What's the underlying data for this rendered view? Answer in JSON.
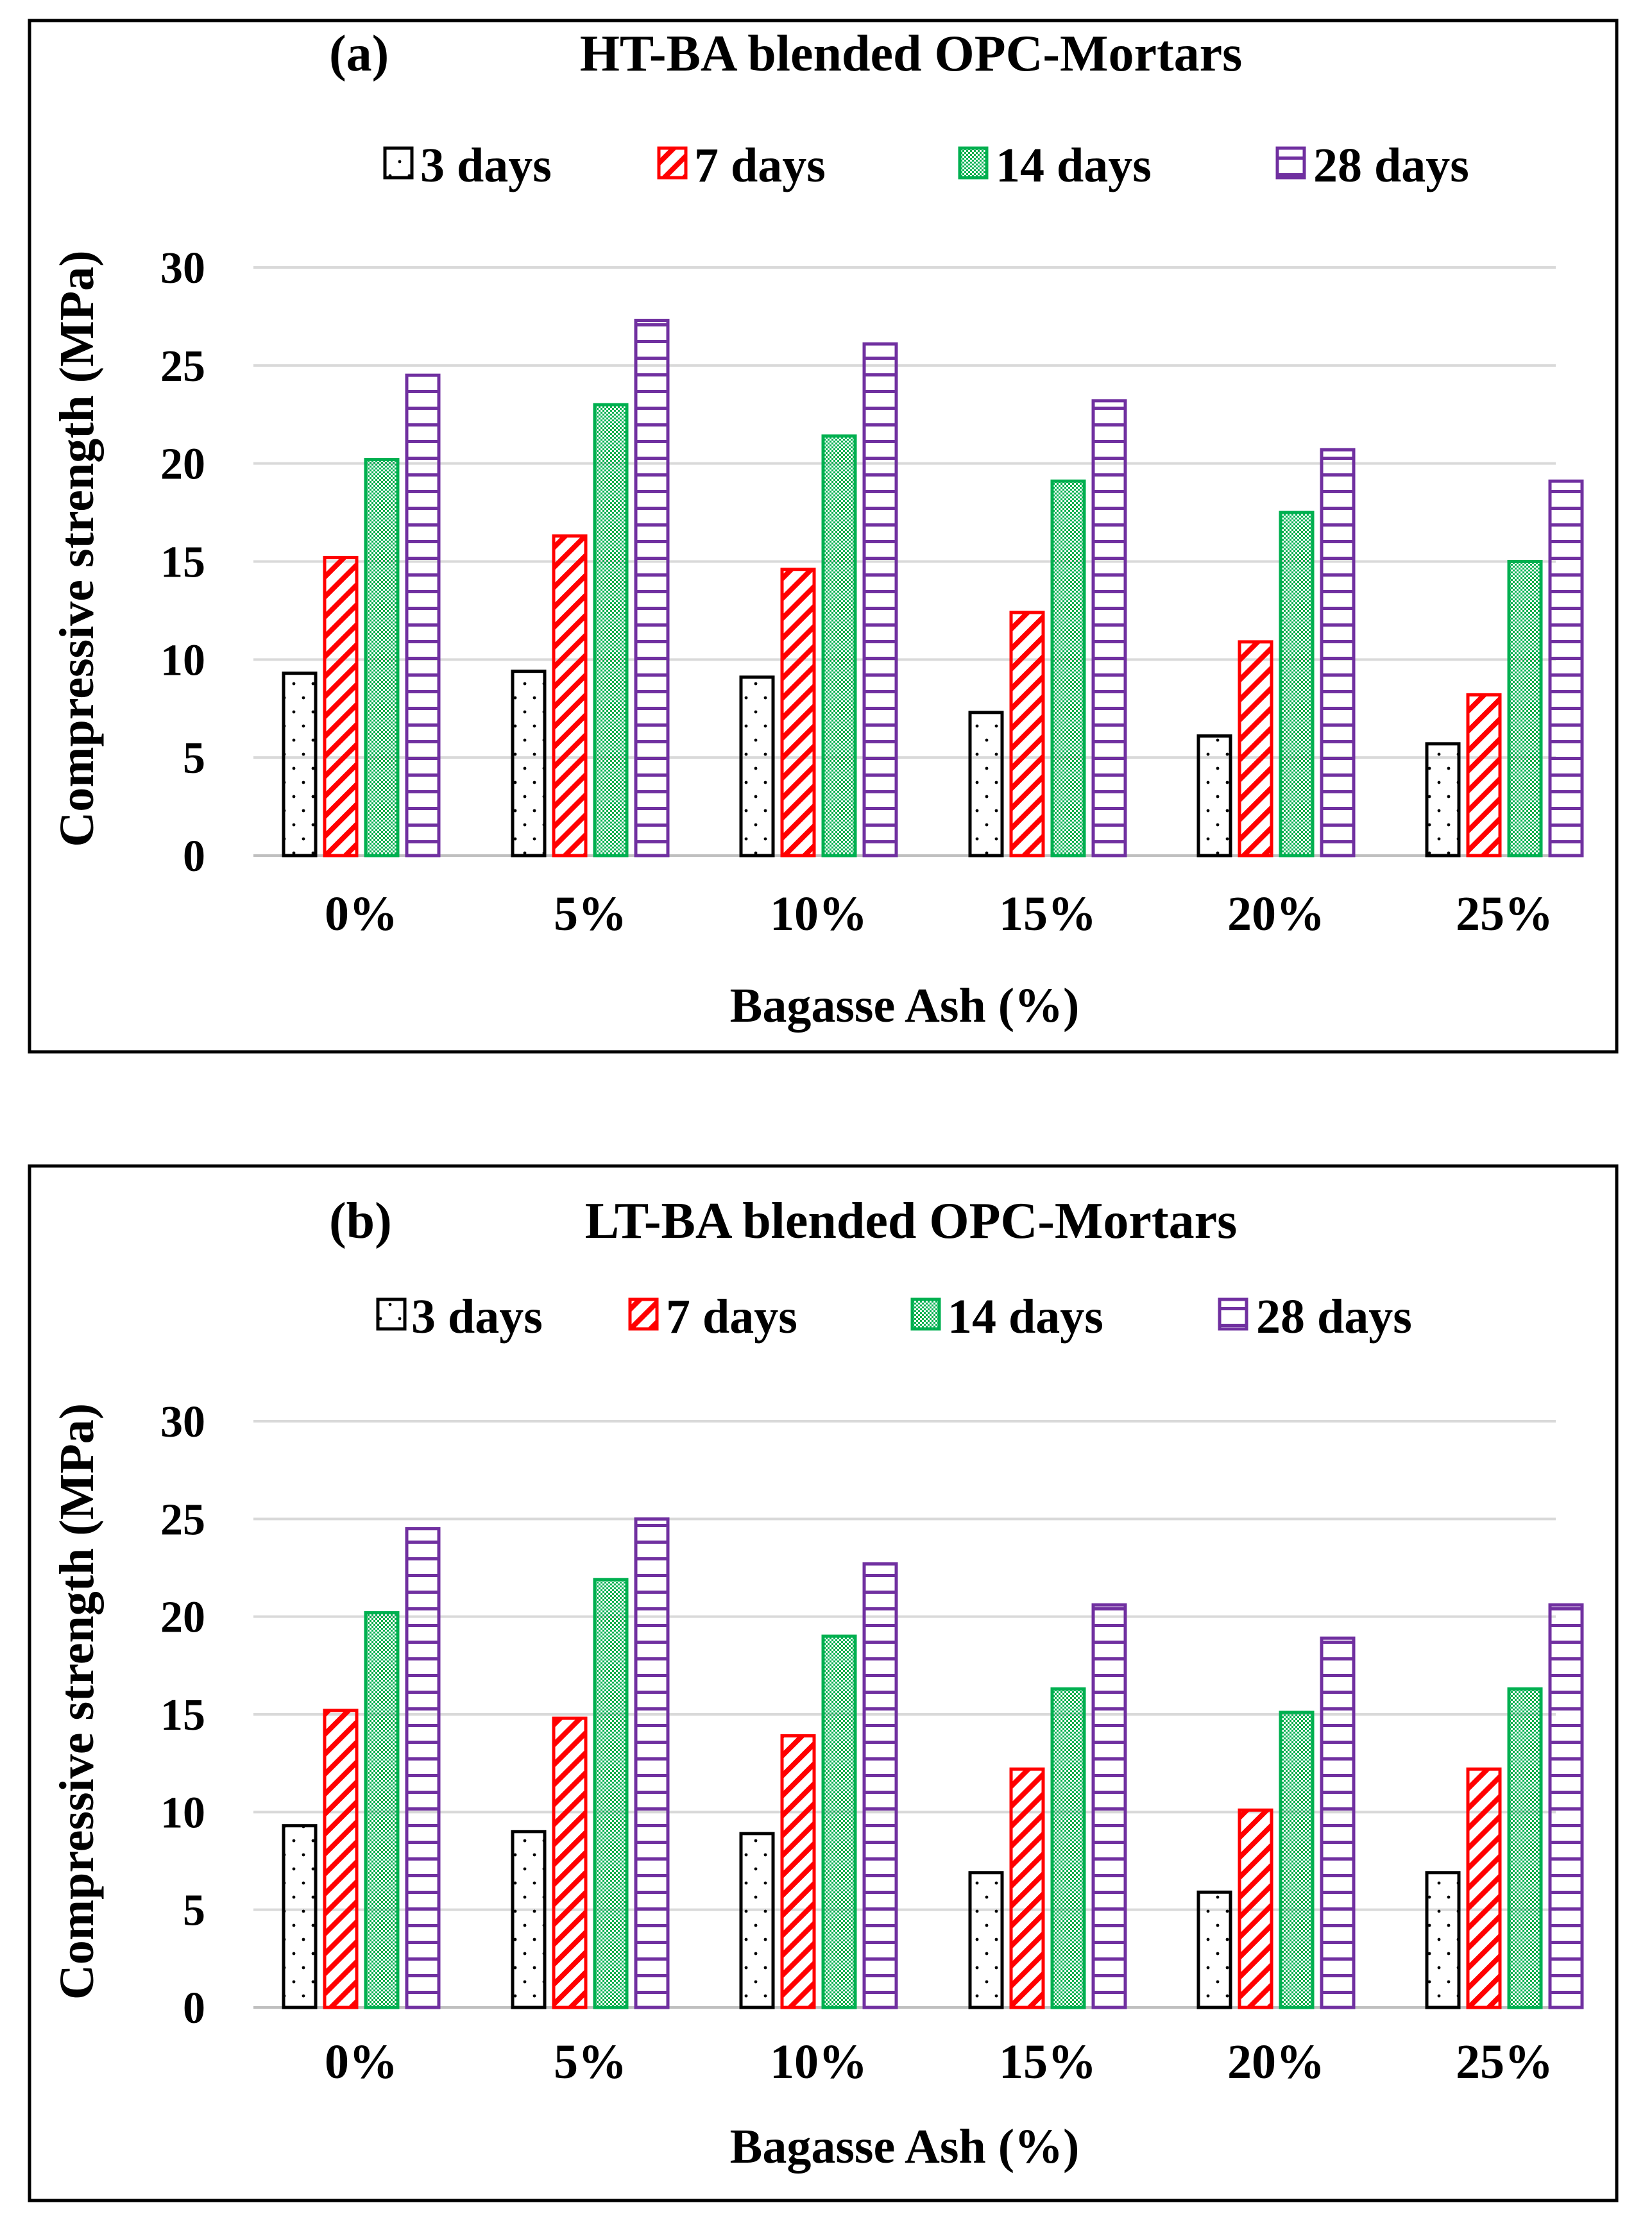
{
  "chart_data": [
    {
      "type": "bar",
      "panel_label": "(a)",
      "title": "HT-BA blended OPC-Mortars",
      "xlabel": "Bagasse Ash (%)",
      "ylabel": "Compressive strength (MPa)",
      "ylim": [
        0,
        30
      ],
      "yticks": [
        0,
        5,
        10,
        15,
        20,
        25,
        30
      ],
      "grid": true,
      "legend_position": "top",
      "categories": [
        "0%",
        "5%",
        "10%",
        "15%",
        "20%",
        "25%"
      ],
      "series": [
        {
          "name": "3 days",
          "color": "#000000",
          "pattern": "dots",
          "values": [
            9.3,
            9.4,
            9.1,
            7.3,
            6.1,
            5.7
          ]
        },
        {
          "name": "7 days",
          "color": "#ff0000",
          "pattern": "diagonal",
          "values": [
            15.2,
            16.3,
            14.6,
            12.4,
            10.9,
            8.2
          ]
        },
        {
          "name": "14 days",
          "color": "#00b050",
          "pattern": "checker",
          "values": [
            20.2,
            23.0,
            21.4,
            19.1,
            17.5,
            15.0
          ]
        },
        {
          "name": "28 days",
          "color": "#7030a0",
          "pattern": "horizontal",
          "values": [
            24.5,
            27.3,
            26.1,
            23.2,
            20.7,
            19.1
          ]
        }
      ]
    },
    {
      "type": "bar",
      "panel_label": "(b)",
      "title": "LT-BA blended OPC-Mortars",
      "xlabel": "Bagasse Ash (%)",
      "ylabel": "Compressive strength (MPa)",
      "ylim": [
        0,
        30
      ],
      "yticks": [
        0,
        5,
        10,
        15,
        20,
        25,
        30
      ],
      "grid": true,
      "legend_position": "top",
      "categories": [
        "0%",
        "5%",
        "10%",
        "15%",
        "20%",
        "25%"
      ],
      "series": [
        {
          "name": "3 days",
          "color": "#000000",
          "pattern": "dots",
          "values": [
            9.3,
            9.0,
            8.9,
            6.9,
            5.9,
            6.9
          ]
        },
        {
          "name": "7 days",
          "color": "#ff0000",
          "pattern": "diagonal",
          "values": [
            15.2,
            14.8,
            13.9,
            12.2,
            10.1,
            12.2
          ]
        },
        {
          "name": "14 days",
          "color": "#00b050",
          "pattern": "checker",
          "values": [
            20.2,
            21.9,
            19.0,
            16.3,
            15.1,
            16.3
          ]
        },
        {
          "name": "28 days",
          "color": "#7030a0",
          "pattern": "horizontal",
          "values": [
            24.5,
            25.0,
            22.7,
            20.6,
            18.9,
            20.6
          ]
        }
      ]
    }
  ]
}
